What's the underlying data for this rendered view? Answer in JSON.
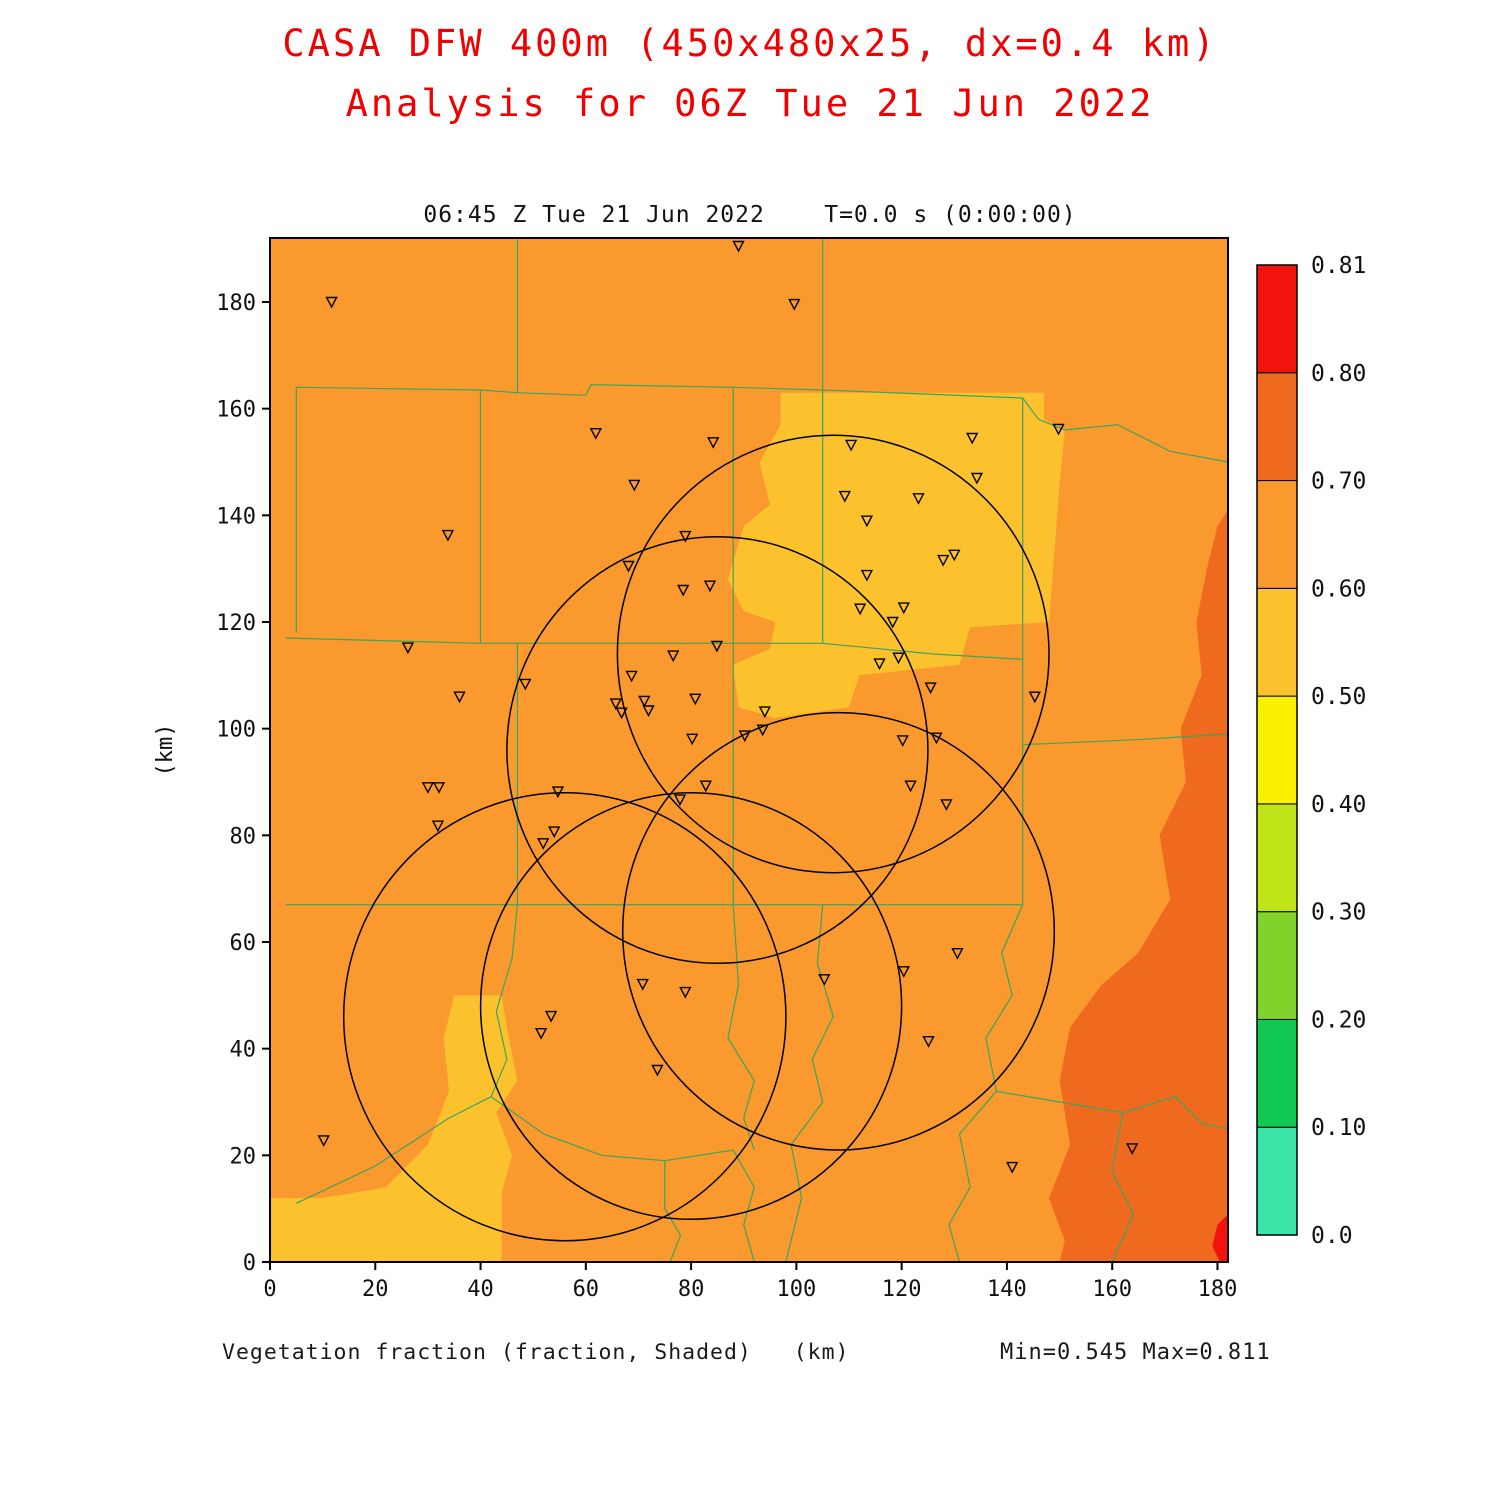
{
  "page_title": {
    "line1": "CASA DFW 400m (450x480x25, dx=0.4 km)",
    "line2": "Analysis for 06Z Tue 21 Jun 2022",
    "color": "#F00000"
  },
  "chart_data": {
    "type": "heatmap",
    "header": "06:45 Z Tue 21 Jun 2022    T=0.0 s (0:00:00)",
    "footer_label": "Vegetation fraction (fraction, Shaded)   (km)",
    "stats": "Min=0.545 Max=0.811",
    "field": "Vegetation fraction",
    "units": "fraction",
    "min": 0.545,
    "max": 0.811,
    "axes": {
      "x_max": 182,
      "y_max": 192,
      "x_ticks": [
        0,
        20,
        40,
        60,
        80,
        100,
        120,
        140,
        160,
        180
      ],
      "y_ticks": [
        0,
        20,
        40,
        60,
        80,
        100,
        120,
        140,
        160,
        180
      ],
      "y_axis_label": "(km)",
      "x_axis_label": "(km)"
    },
    "colorbar": {
      "labels": [
        "0.0",
        "0.10",
        "0.20",
        "0.30",
        "0.40",
        "0.50",
        "0.60",
        "0.70",
        "0.80",
        "0.81"
      ],
      "colors": [
        "#3BE3A5",
        "#12C855",
        "#7FD32A",
        "#BEE316",
        "#FBF000",
        "#FCC22D",
        "#F9992E",
        "#EF6A1F",
        "#F2140C"
      ]
    },
    "background_color": "#F9992E",
    "regions": [
      {
        "name": "veg-0.50-0.60-northeast",
        "level": "0.50-0.60",
        "color": "#FCC22D",
        "points": [
          [
            97,
            163
          ],
          [
            147,
            163
          ],
          [
            147,
            158
          ],
          [
            151,
            156
          ],
          [
            150,
            146
          ],
          [
            148,
            120
          ],
          [
            133,
            119
          ],
          [
            131,
            112
          ],
          [
            112,
            110
          ],
          [
            110,
            104
          ],
          [
            96,
            102
          ],
          [
            89,
            104
          ],
          [
            88,
            112
          ],
          [
            95,
            115
          ],
          [
            96,
            120
          ],
          [
            90,
            122
          ],
          [
            87,
            128
          ],
          [
            90,
            138
          ],
          [
            95,
            142
          ],
          [
            93,
            150
          ],
          [
            97,
            157
          ]
        ]
      },
      {
        "name": "veg-0.50-0.60-southwest",
        "level": "0.50-0.60",
        "color": "#FCC22D",
        "points": [
          [
            0,
            0
          ],
          [
            44,
            0
          ],
          [
            44,
            13
          ],
          [
            46,
            20
          ],
          [
            43,
            28
          ],
          [
            47,
            34
          ],
          [
            45,
            44
          ],
          [
            44,
            50
          ],
          [
            35,
            50
          ],
          [
            33,
            42
          ],
          [
            34,
            32
          ],
          [
            30,
            22
          ],
          [
            22,
            14
          ],
          [
            10,
            12
          ],
          [
            0,
            12
          ]
        ]
      },
      {
        "name": "veg-0.70-0.80-east",
        "level": "0.70-0.80",
        "color": "#EF6A1F",
        "points": [
          [
            182,
            141
          ],
          [
            180,
            138
          ],
          [
            178,
            130
          ],
          [
            176,
            120
          ],
          [
            177,
            110
          ],
          [
            173,
            100
          ],
          [
            174,
            90
          ],
          [
            169,
            80
          ],
          [
            171,
            68
          ],
          [
            165,
            58
          ],
          [
            158,
            52
          ],
          [
            152,
            44
          ],
          [
            150,
            34
          ],
          [
            152,
            22
          ],
          [
            148,
            12
          ],
          [
            151,
            4
          ],
          [
            150,
            0
          ],
          [
            182,
            0
          ]
        ]
      },
      {
        "name": "veg-0.80-0.81-corner",
        "level": "0.80-0.81",
        "color": "#F2140C",
        "points": [
          [
            182,
            9
          ],
          [
            180,
            7
          ],
          [
            179,
            3
          ],
          [
            180.5,
            0
          ],
          [
            182,
            0
          ]
        ]
      }
    ],
    "county_lines": {
      "color": "#3BA55D",
      "paths": [
        [
          [
            47,
            192
          ],
          [
            47,
            163
          ]
        ],
        [
          [
            5,
            164
          ],
          [
            40,
            163.5
          ],
          [
            47,
            163
          ]
        ],
        [
          [
            47,
            163
          ],
          [
            60,
            162.5
          ],
          [
            61,
            164.5
          ],
          [
            88,
            164
          ],
          [
            105,
            163.5
          ]
        ],
        [
          [
            5,
            118
          ],
          [
            5,
            164
          ]
        ],
        [
          [
            3,
            117
          ],
          [
            40,
            116
          ],
          [
            88,
            116
          ],
          [
            105,
            116
          ]
        ],
        [
          [
            40,
            163.5
          ],
          [
            40,
            116
          ]
        ],
        [
          [
            105,
            192
          ],
          [
            105,
            116
          ]
        ],
        [
          [
            88,
            164
          ],
          [
            88,
            67
          ]
        ],
        [
          [
            47,
            116
          ],
          [
            47,
            67
          ]
        ],
        [
          [
            3,
            67
          ],
          [
            143,
            67
          ]
        ],
        [
          [
            105,
            163.5
          ],
          [
            143,
            162
          ],
          [
            146,
            158
          ],
          [
            151,
            156
          ],
          [
            161,
            157
          ],
          [
            171,
            152
          ],
          [
            182,
            150
          ]
        ],
        [
          [
            143,
            162
          ],
          [
            143,
            97
          ]
        ],
        [
          [
            105,
            116
          ],
          [
            126,
            114
          ],
          [
            143,
            113
          ]
        ],
        [
          [
            143,
            97
          ],
          [
            166,
            98
          ],
          [
            182,
            99
          ]
        ],
        [
          [
            143,
            97
          ],
          [
            143,
            67
          ]
        ],
        [
          [
            47,
            67
          ],
          [
            46,
            57
          ],
          [
            43,
            47
          ],
          [
            45,
            38
          ],
          [
            42,
            31
          ],
          [
            34,
            27
          ],
          [
            20,
            18
          ],
          [
            5,
            11
          ]
        ],
        [
          [
            42,
            31
          ],
          [
            52,
            24
          ],
          [
            63,
            20
          ],
          [
            75,
            19
          ]
        ],
        [
          [
            75,
            19
          ],
          [
            75,
            10
          ],
          [
            78,
            5
          ],
          [
            76,
            0
          ]
        ],
        [
          [
            75,
            19
          ],
          [
            88,
            21
          ],
          [
            92,
            14
          ],
          [
            90,
            7
          ],
          [
            92,
            0
          ]
        ],
        [
          [
            88,
            67
          ],
          [
            89,
            52
          ],
          [
            87,
            42
          ],
          [
            92,
            34
          ],
          [
            90,
            27
          ],
          [
            92,
            21
          ]
        ],
        [
          [
            105,
            67
          ],
          [
            104,
            56
          ],
          [
            107,
            46
          ],
          [
            103,
            38
          ],
          [
            105,
            30
          ],
          [
            99,
            22
          ],
          [
            101,
            12
          ],
          [
            98,
            0
          ]
        ],
        [
          [
            143,
            67
          ],
          [
            139,
            58
          ],
          [
            141,
            50
          ],
          [
            136,
            42
          ],
          [
            138,
            32
          ],
          [
            131,
            24
          ],
          [
            133,
            14
          ],
          [
            129,
            7
          ],
          [
            131,
            0
          ]
        ],
        [
          [
            138,
            32
          ],
          [
            150,
            30
          ],
          [
            162,
            28
          ],
          [
            172,
            31
          ],
          [
            177,
            26
          ],
          [
            182,
            25
          ]
        ],
        [
          [
            162,
            28
          ],
          [
            160,
            17
          ],
          [
            164,
            9
          ],
          [
            160,
            0
          ]
        ]
      ]
    },
    "range_rings": {
      "color": "#000000",
      "circles": [
        [
          107,
          114,
          41
        ],
        [
          85,
          96,
          40
        ],
        [
          56,
          46,
          42
        ],
        [
          80,
          48,
          40
        ],
        [
          108,
          62,
          41
        ]
      ]
    },
    "markers": {
      "shape": "triangle-down-open",
      "color": "#000000",
      "points": [
        [
          11.7,
          180
        ],
        [
          89,
          190.5
        ],
        [
          99.6,
          179.6
        ],
        [
          61.9,
          155.4
        ],
        [
          149.8,
          156.2
        ],
        [
          84.2,
          153.7
        ],
        [
          110.4,
          153.2
        ],
        [
          133.4,
          154.5
        ],
        [
          69.2,
          145.7
        ],
        [
          134.3,
          147
        ],
        [
          109.2,
          143.6
        ],
        [
          123.2,
          143.2
        ],
        [
          113.4,
          139
        ],
        [
          33.8,
          136.3
        ],
        [
          78.9,
          136.1
        ],
        [
          127.9,
          131.6
        ],
        [
          130,
          132.6
        ],
        [
          113.4,
          128.8
        ],
        [
          68.1,
          130.5
        ],
        [
          78.5,
          126
        ],
        [
          83.6,
          126.8
        ],
        [
          112.1,
          122.5
        ],
        [
          120.4,
          122.7
        ],
        [
          118.3,
          120
        ],
        [
          26.2,
          115.2
        ],
        [
          84.9,
          115.5
        ],
        [
          76.6,
          113.7
        ],
        [
          115.8,
          112.2
        ],
        [
          119.4,
          113.3
        ],
        [
          48.5,
          108.4
        ],
        [
          68.7,
          109.9
        ],
        [
          36,
          106
        ],
        [
          125.5,
          107.7
        ],
        [
          65.7,
          104.7
        ],
        [
          71.1,
          105.2
        ],
        [
          66.8,
          103
        ],
        [
          71.9,
          103.4
        ],
        [
          80.8,
          105.6
        ],
        [
          94,
          103.2
        ],
        [
          145.3,
          106
        ],
        [
          31.9,
          81.8
        ],
        [
          80.2,
          98.1
        ],
        [
          90.2,
          98.7
        ],
        [
          93.6,
          99.8
        ],
        [
          120.2,
          97.8
        ],
        [
          126.6,
          98.3
        ],
        [
          82.8,
          89.3
        ],
        [
          121.7,
          89.3
        ],
        [
          30,
          89
        ],
        [
          32.1,
          89
        ],
        [
          77.9,
          86.7
        ],
        [
          128.5,
          85.8
        ],
        [
          54.7,
          88.2
        ],
        [
          54,
          80.7
        ],
        [
          51.9,
          78.5
        ],
        [
          130.6,
          57.9
        ],
        [
          70.8,
          52.1
        ],
        [
          105.3,
          53
        ],
        [
          120.4,
          54.5
        ],
        [
          78.9,
          50.6
        ],
        [
          53.4,
          46.1
        ],
        [
          51.5,
          42.9
        ],
        [
          125.1,
          41.4
        ],
        [
          73.6,
          36
        ],
        [
          10.2,
          22.8
        ],
        [
          141,
          17.8
        ],
        [
          163.8,
          21.3
        ]
      ]
    }
  }
}
